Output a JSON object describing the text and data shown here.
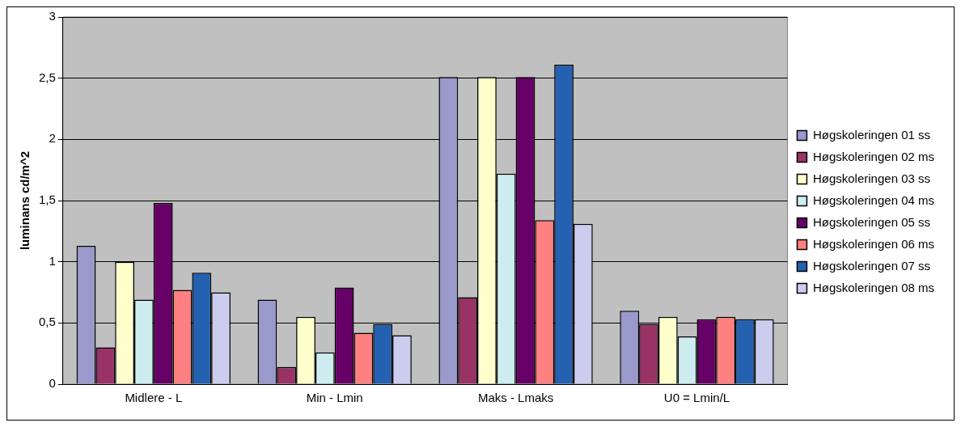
{
  "chart_data": {
    "type": "bar",
    "ylabel": "luminans cd/m^2",
    "categories": [
      "Midlere - L",
      "Min - Lmin",
      "Maks - Lmaks",
      "U0 = Lmin/L"
    ],
    "series": [
      {
        "name": "Høgskoleringen 01 ss",
        "color": "#9999cc",
        "values": [
          1.13,
          0.69,
          2.51,
          0.6
        ]
      },
      {
        "name": "Høgskoleringen 02 ms",
        "color": "#993366",
        "values": [
          0.3,
          0.14,
          0.71,
          0.49
        ]
      },
      {
        "name": "Høgskoleringen 03 ss",
        "color": "#ffffcc",
        "values": [
          1.0,
          0.55,
          2.51,
          0.55
        ]
      },
      {
        "name": "Høgskoleringen 04 ms",
        "color": "#ccecf0",
        "values": [
          0.69,
          0.26,
          1.72,
          0.39
        ]
      },
      {
        "name": "Høgskoleringen 05 ss",
        "color": "#660066",
        "values": [
          1.48,
          0.79,
          2.51,
          0.53
        ]
      },
      {
        "name": "Høgskoleringen 06 ms",
        "color": "#ff8080",
        "values": [
          0.77,
          0.42,
          1.34,
          0.55
        ]
      },
      {
        "name": "Høgskoleringen 07 ss",
        "color": "#2461b0",
        "values": [
          0.91,
          0.49,
          2.61,
          0.53
        ]
      },
      {
        "name": "Høgskoleringen 08 ms",
        "color": "#ccccee",
        "values": [
          0.75,
          0.4,
          1.31,
          0.53
        ]
      }
    ],
    "ylim": [
      0,
      3
    ],
    "yticks": [
      0,
      {
        "value": 0.5,
        "label": "0,5"
      },
      1,
      {
        "value": 1.5,
        "label": "1,5"
      },
      2,
      {
        "value": 2.5,
        "label": "2,5"
      },
      3
    ],
    "grid": "y",
    "legend": "right"
  }
}
